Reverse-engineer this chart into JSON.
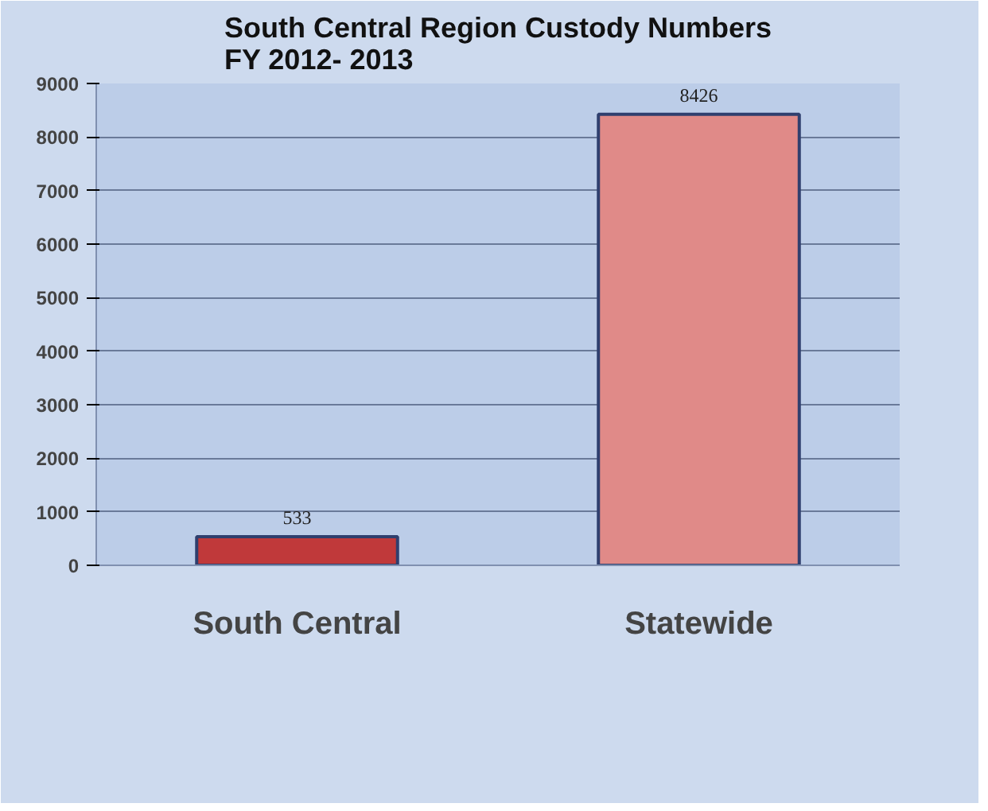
{
  "chart_data": {
    "type": "bar",
    "title": "South Central Region Custody Numbers\nFY 2012- 2013",
    "categories": [
      "South Central",
      "Statewide"
    ],
    "values": [
      533,
      8426
    ],
    "colors": [
      "#c0393a",
      "#e08a88"
    ],
    "ylim": [
      0,
      9000
    ],
    "yticks": [
      0,
      1000,
      2000,
      3000,
      4000,
      5000,
      6000,
      7000,
      8000,
      9000
    ],
    "grid": "y",
    "data_labels": true
  }
}
